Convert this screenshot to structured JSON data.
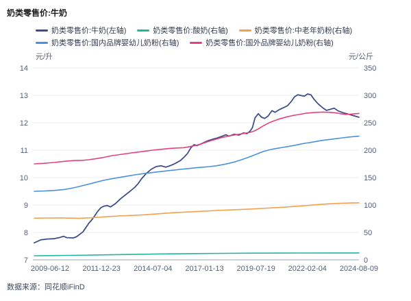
{
  "header": {
    "title": "奶类零售价:牛奶"
  },
  "footer": {
    "source": "数据来源：同花顺iFinD"
  },
  "chart_data": {
    "type": "line",
    "title": "奶类零售价:牛奶",
    "grid": true,
    "legend_position": "top-left",
    "left_axis": {
      "unit": "元/升",
      "min": 7,
      "max": 14,
      "ticks": [
        14,
        13,
        12,
        11,
        10,
        9,
        8,
        7
      ]
    },
    "right_axis": {
      "unit": "元/公斤",
      "min": 0,
      "max": 350,
      "ticks": [
        350,
        300,
        250,
        200,
        150,
        100,
        50,
        0
      ]
    },
    "x_tick_labels": [
      "2009-06-12",
      "2011-12-23",
      "2014-07-04",
      "2017-01-13",
      "2019-07-19",
      "2022-02-04",
      "2024-08-09"
    ],
    "legend_rows": [
      [
        0,
        1,
        2
      ],
      [
        3,
        4
      ]
    ],
    "series": [
      {
        "name": "奶类零售价:牛奶(左轴)",
        "axis": "left",
        "color": "#3d4d8b",
        "width": 1.8,
        "points": [
          [
            0,
            7.62
          ],
          [
            0.02,
            7.73
          ],
          [
            0.04,
            7.76
          ],
          [
            0.06,
            7.77
          ],
          [
            0.08,
            7.82
          ],
          [
            0.09,
            7.86
          ],
          [
            0.1,
            7.81
          ],
          [
            0.12,
            7.8
          ],
          [
            0.13,
            7.84
          ],
          [
            0.15,
            8.02
          ],
          [
            0.167,
            8.32
          ],
          [
            0.18,
            8.5
          ],
          [
            0.195,
            8.76
          ],
          [
            0.205,
            8.9
          ],
          [
            0.215,
            8.96
          ],
          [
            0.225,
            8.98
          ],
          [
            0.235,
            8.93
          ],
          [
            0.25,
            9.05
          ],
          [
            0.265,
            9.22
          ],
          [
            0.28,
            9.36
          ],
          [
            0.295,
            9.5
          ],
          [
            0.31,
            9.65
          ],
          [
            0.32,
            9.78
          ],
          [
            0.33,
            9.95
          ],
          [
            0.345,
            10.15
          ],
          [
            0.36,
            10.3
          ],
          [
            0.375,
            10.4
          ],
          [
            0.39,
            10.43
          ],
          [
            0.405,
            10.38
          ],
          [
            0.42,
            10.44
          ],
          [
            0.435,
            10.52
          ],
          [
            0.45,
            10.62
          ],
          [
            0.462,
            10.75
          ],
          [
            0.472,
            10.88
          ],
          [
            0.482,
            11.08
          ],
          [
            0.492,
            11.2
          ],
          [
            0.502,
            11.17
          ],
          [
            0.512,
            11.22
          ],
          [
            0.527,
            11.3
          ],
          [
            0.537,
            11.35
          ],
          [
            0.55,
            11.4
          ],
          [
            0.56,
            11.43
          ],
          [
            0.575,
            11.49
          ],
          [
            0.59,
            11.56
          ],
          [
            0.6,
            11.51
          ],
          [
            0.615,
            11.58
          ],
          [
            0.63,
            11.55
          ],
          [
            0.645,
            11.63
          ],
          [
            0.655,
            11.6
          ],
          [
            0.665,
            11.7
          ],
          [
            0.672,
            11.82
          ],
          [
            0.68,
            12.18
          ],
          [
            0.69,
            12.33
          ],
          [
            0.7,
            12.2
          ],
          [
            0.71,
            12.16
          ],
          [
            0.72,
            12.24
          ],
          [
            0.732,
            12.44
          ],
          [
            0.742,
            12.38
          ],
          [
            0.755,
            12.48
          ],
          [
            0.768,
            12.55
          ],
          [
            0.78,
            12.62
          ],
          [
            0.792,
            12.78
          ],
          [
            0.802,
            12.95
          ],
          [
            0.812,
            13.02
          ],
          [
            0.822,
            12.99
          ],
          [
            0.832,
            12.97
          ],
          [
            0.842,
            13.05
          ],
          [
            0.852,
            13.02
          ],
          [
            0.862,
            12.85
          ],
          [
            0.875,
            12.68
          ],
          [
            0.888,
            12.55
          ],
          [
            0.9,
            12.45
          ],
          [
            0.912,
            12.49
          ],
          [
            0.924,
            12.53
          ],
          [
            0.936,
            12.43
          ],
          [
            0.95,
            12.37
          ],
          [
            0.965,
            12.32
          ],
          [
            0.98,
            12.27
          ],
          [
            1,
            12.2
          ]
        ]
      },
      {
        "name": "奶类零售价:酸奶(右轴)",
        "axis": "right",
        "color": "#26b3a2",
        "width": 1.6,
        "points": [
          [
            0,
            7.5
          ],
          [
            0.05,
            7.8
          ],
          [
            0.1,
            8.1
          ],
          [
            0.167,
            8.6
          ],
          [
            0.25,
            9.5
          ],
          [
            0.333,
            10.3
          ],
          [
            0.42,
            11.0
          ],
          [
            0.5,
            11.5
          ],
          [
            0.58,
            11.9
          ],
          [
            0.67,
            12.2
          ],
          [
            0.75,
            12.4
          ],
          [
            0.833,
            12.5
          ],
          [
            0.92,
            12.6
          ],
          [
            1,
            12.6
          ]
        ]
      },
      {
        "name": "奶类零售价:中老年奶粉(右轴)",
        "axis": "right",
        "color": "#f5a04d",
        "width": 1.6,
        "points": [
          [
            0,
            76
          ],
          [
            0.04,
            76.3
          ],
          [
            0.08,
            76.5
          ],
          [
            0.11,
            76
          ],
          [
            0.14,
            75.8
          ],
          [
            0.167,
            76.5
          ],
          [
            0.2,
            77.8
          ],
          [
            0.23,
            79
          ],
          [
            0.26,
            80
          ],
          [
            0.3,
            81
          ],
          [
            0.333,
            82
          ],
          [
            0.37,
            83.5
          ],
          [
            0.4,
            84.8
          ],
          [
            0.43,
            86
          ],
          [
            0.46,
            87
          ],
          [
            0.5,
            88
          ],
          [
            0.53,
            89
          ],
          [
            0.56,
            90
          ],
          [
            0.6,
            91
          ],
          [
            0.64,
            92
          ],
          [
            0.67,
            92.8
          ],
          [
            0.7,
            93.8
          ],
          [
            0.73,
            94.8
          ],
          [
            0.76,
            95.8
          ],
          [
            0.79,
            97
          ],
          [
            0.82,
            98.3
          ],
          [
            0.85,
            99.6
          ],
          [
            0.88,
            101
          ],
          [
            0.91,
            102.3
          ],
          [
            0.94,
            103
          ],
          [
            0.97,
            103.6
          ],
          [
            1,
            104
          ]
        ]
      },
      {
        "name": "奶类零售价:国内品牌婴幼儿奶粉(右轴)",
        "axis": "right",
        "color": "#4a91dc",
        "width": 1.6,
        "points": [
          [
            0,
            125
          ],
          [
            0.03,
            125.5
          ],
          [
            0.06,
            126.5
          ],
          [
            0.09,
            128
          ],
          [
            0.11,
            130
          ],
          [
            0.13,
            132.5
          ],
          [
            0.15,
            135.5
          ],
          [
            0.167,
            138
          ],
          [
            0.19,
            141.5
          ],
          [
            0.21,
            144.5
          ],
          [
            0.23,
            147
          ],
          [
            0.25,
            149
          ],
          [
            0.27,
            151
          ],
          [
            0.29,
            153
          ],
          [
            0.31,
            155
          ],
          [
            0.333,
            157
          ],
          [
            0.36,
            159
          ],
          [
            0.39,
            161
          ],
          [
            0.42,
            163
          ],
          [
            0.45,
            165
          ],
          [
            0.48,
            166.8
          ],
          [
            0.5,
            168
          ],
          [
            0.52,
            169
          ],
          [
            0.54,
            170
          ],
          [
            0.56,
            171.5
          ],
          [
            0.58,
            173.5
          ],
          [
            0.6,
            176
          ],
          [
            0.62,
            179
          ],
          [
            0.64,
            183
          ],
          [
            0.66,
            187
          ],
          [
            0.675,
            190.5
          ],
          [
            0.69,
            194
          ],
          [
            0.705,
            197.5
          ],
          [
            0.72,
            200
          ],
          [
            0.735,
            202
          ],
          [
            0.75,
            203.5
          ],
          [
            0.765,
            205
          ],
          [
            0.78,
            206.5
          ],
          [
            0.8,
            208.5
          ],
          [
            0.82,
            211
          ],
          [
            0.833,
            212.5
          ],
          [
            0.85,
            214
          ],
          [
            0.87,
            216
          ],
          [
            0.89,
            218
          ],
          [
            0.91,
            219.5
          ],
          [
            0.93,
            221
          ],
          [
            0.95,
            222.5
          ],
          [
            0.97,
            224
          ],
          [
            1,
            225.5
          ]
        ]
      },
      {
        "name": "奶类零售价:国外品牌婴幼儿奶粉(右轴)",
        "axis": "right",
        "color": "#e6417e",
        "width": 1.6,
        "points": [
          [
            0,
            175
          ],
          [
            0.03,
            176
          ],
          [
            0.06,
            177.5
          ],
          [
            0.09,
            179.5
          ],
          [
            0.12,
            181
          ],
          [
            0.15,
            181.5
          ],
          [
            0.167,
            182.5
          ],
          [
            0.19,
            184.5
          ],
          [
            0.215,
            187
          ],
          [
            0.24,
            190
          ],
          [
            0.27,
            192.5
          ],
          [
            0.3,
            195
          ],
          [
            0.32,
            196.5
          ],
          [
            0.34,
            198
          ],
          [
            0.365,
            200
          ],
          [
            0.39,
            201.5
          ],
          [
            0.415,
            203
          ],
          [
            0.44,
            204
          ],
          [
            0.46,
            204.5
          ],
          [
            0.48,
            206.5
          ],
          [
            0.5,
            209
          ],
          [
            0.515,
            211.5
          ],
          [
            0.53,
            214.5
          ],
          [
            0.545,
            217.5
          ],
          [
            0.56,
            220
          ],
          [
            0.575,
            222.5
          ],
          [
            0.59,
            224.5
          ],
          [
            0.605,
            226.5
          ],
          [
            0.62,
            228
          ],
          [
            0.635,
            229.5
          ],
          [
            0.65,
            231
          ],
          [
            0.665,
            232.5
          ],
          [
            0.678,
            235
          ],
          [
            0.692,
            239.5
          ],
          [
            0.706,
            244.5
          ],
          [
            0.72,
            249
          ],
          [
            0.734,
            252.5
          ],
          [
            0.75,
            256
          ],
          [
            0.765,
            258.5
          ],
          [
            0.78,
            261
          ],
          [
            0.795,
            263
          ],
          [
            0.815,
            265
          ],
          [
            0.833,
            267
          ],
          [
            0.85,
            268
          ],
          [
            0.87,
            269
          ],
          [
            0.89,
            269.5
          ],
          [
            0.91,
            269
          ],
          [
            0.928,
            268
          ],
          [
            0.944,
            266.5
          ],
          [
            0.958,
            265
          ],
          [
            0.972,
            265.5
          ],
          [
            1,
            267
          ]
        ]
      }
    ],
    "colors": {
      "grid": "#ecedf5",
      "axis_line": "#9aa3b6",
      "tick_text": "#565f73"
    }
  }
}
